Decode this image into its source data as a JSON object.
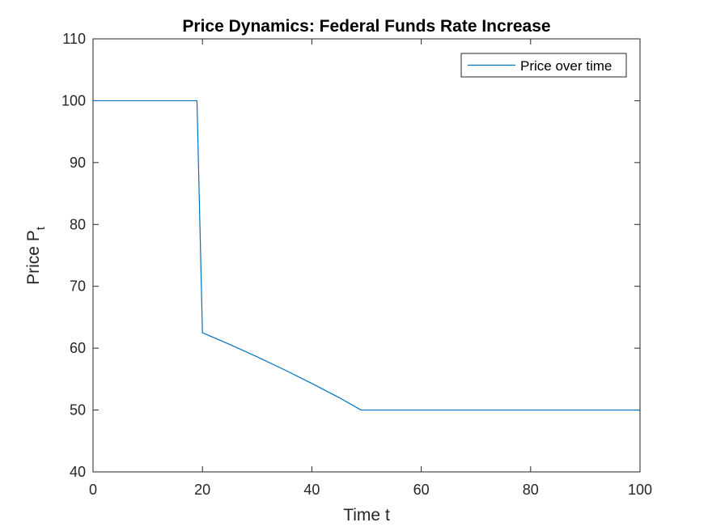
{
  "chart_data": {
    "type": "line",
    "title": "Price Dynamics: Federal Funds Rate Increase",
    "xlabel": "Time t",
    "ylabel_main": "Price P",
    "ylabel_sub": "t",
    "xlim": [
      0,
      100
    ],
    "ylim": [
      40,
      110
    ],
    "xticks": [
      "0",
      "20",
      "40",
      "60",
      "80",
      "100"
    ],
    "yticks": [
      "40",
      "50",
      "60",
      "70",
      "80",
      "90",
      "100",
      "110"
    ],
    "grid": false,
    "legend_placement": "top-right",
    "series": [
      {
        "name": "Price over time",
        "color": "#0072bd",
        "x": [
          0,
          19,
          20,
          25,
          30,
          35,
          40,
          45,
          49,
          50,
          60,
          70,
          80,
          90,
          100
        ],
        "y": [
          100,
          100,
          62.5,
          60.6,
          58.6,
          56.5,
          54.3,
          52.0,
          50,
          50,
          50,
          50,
          50,
          50,
          50
        ]
      }
    ]
  }
}
